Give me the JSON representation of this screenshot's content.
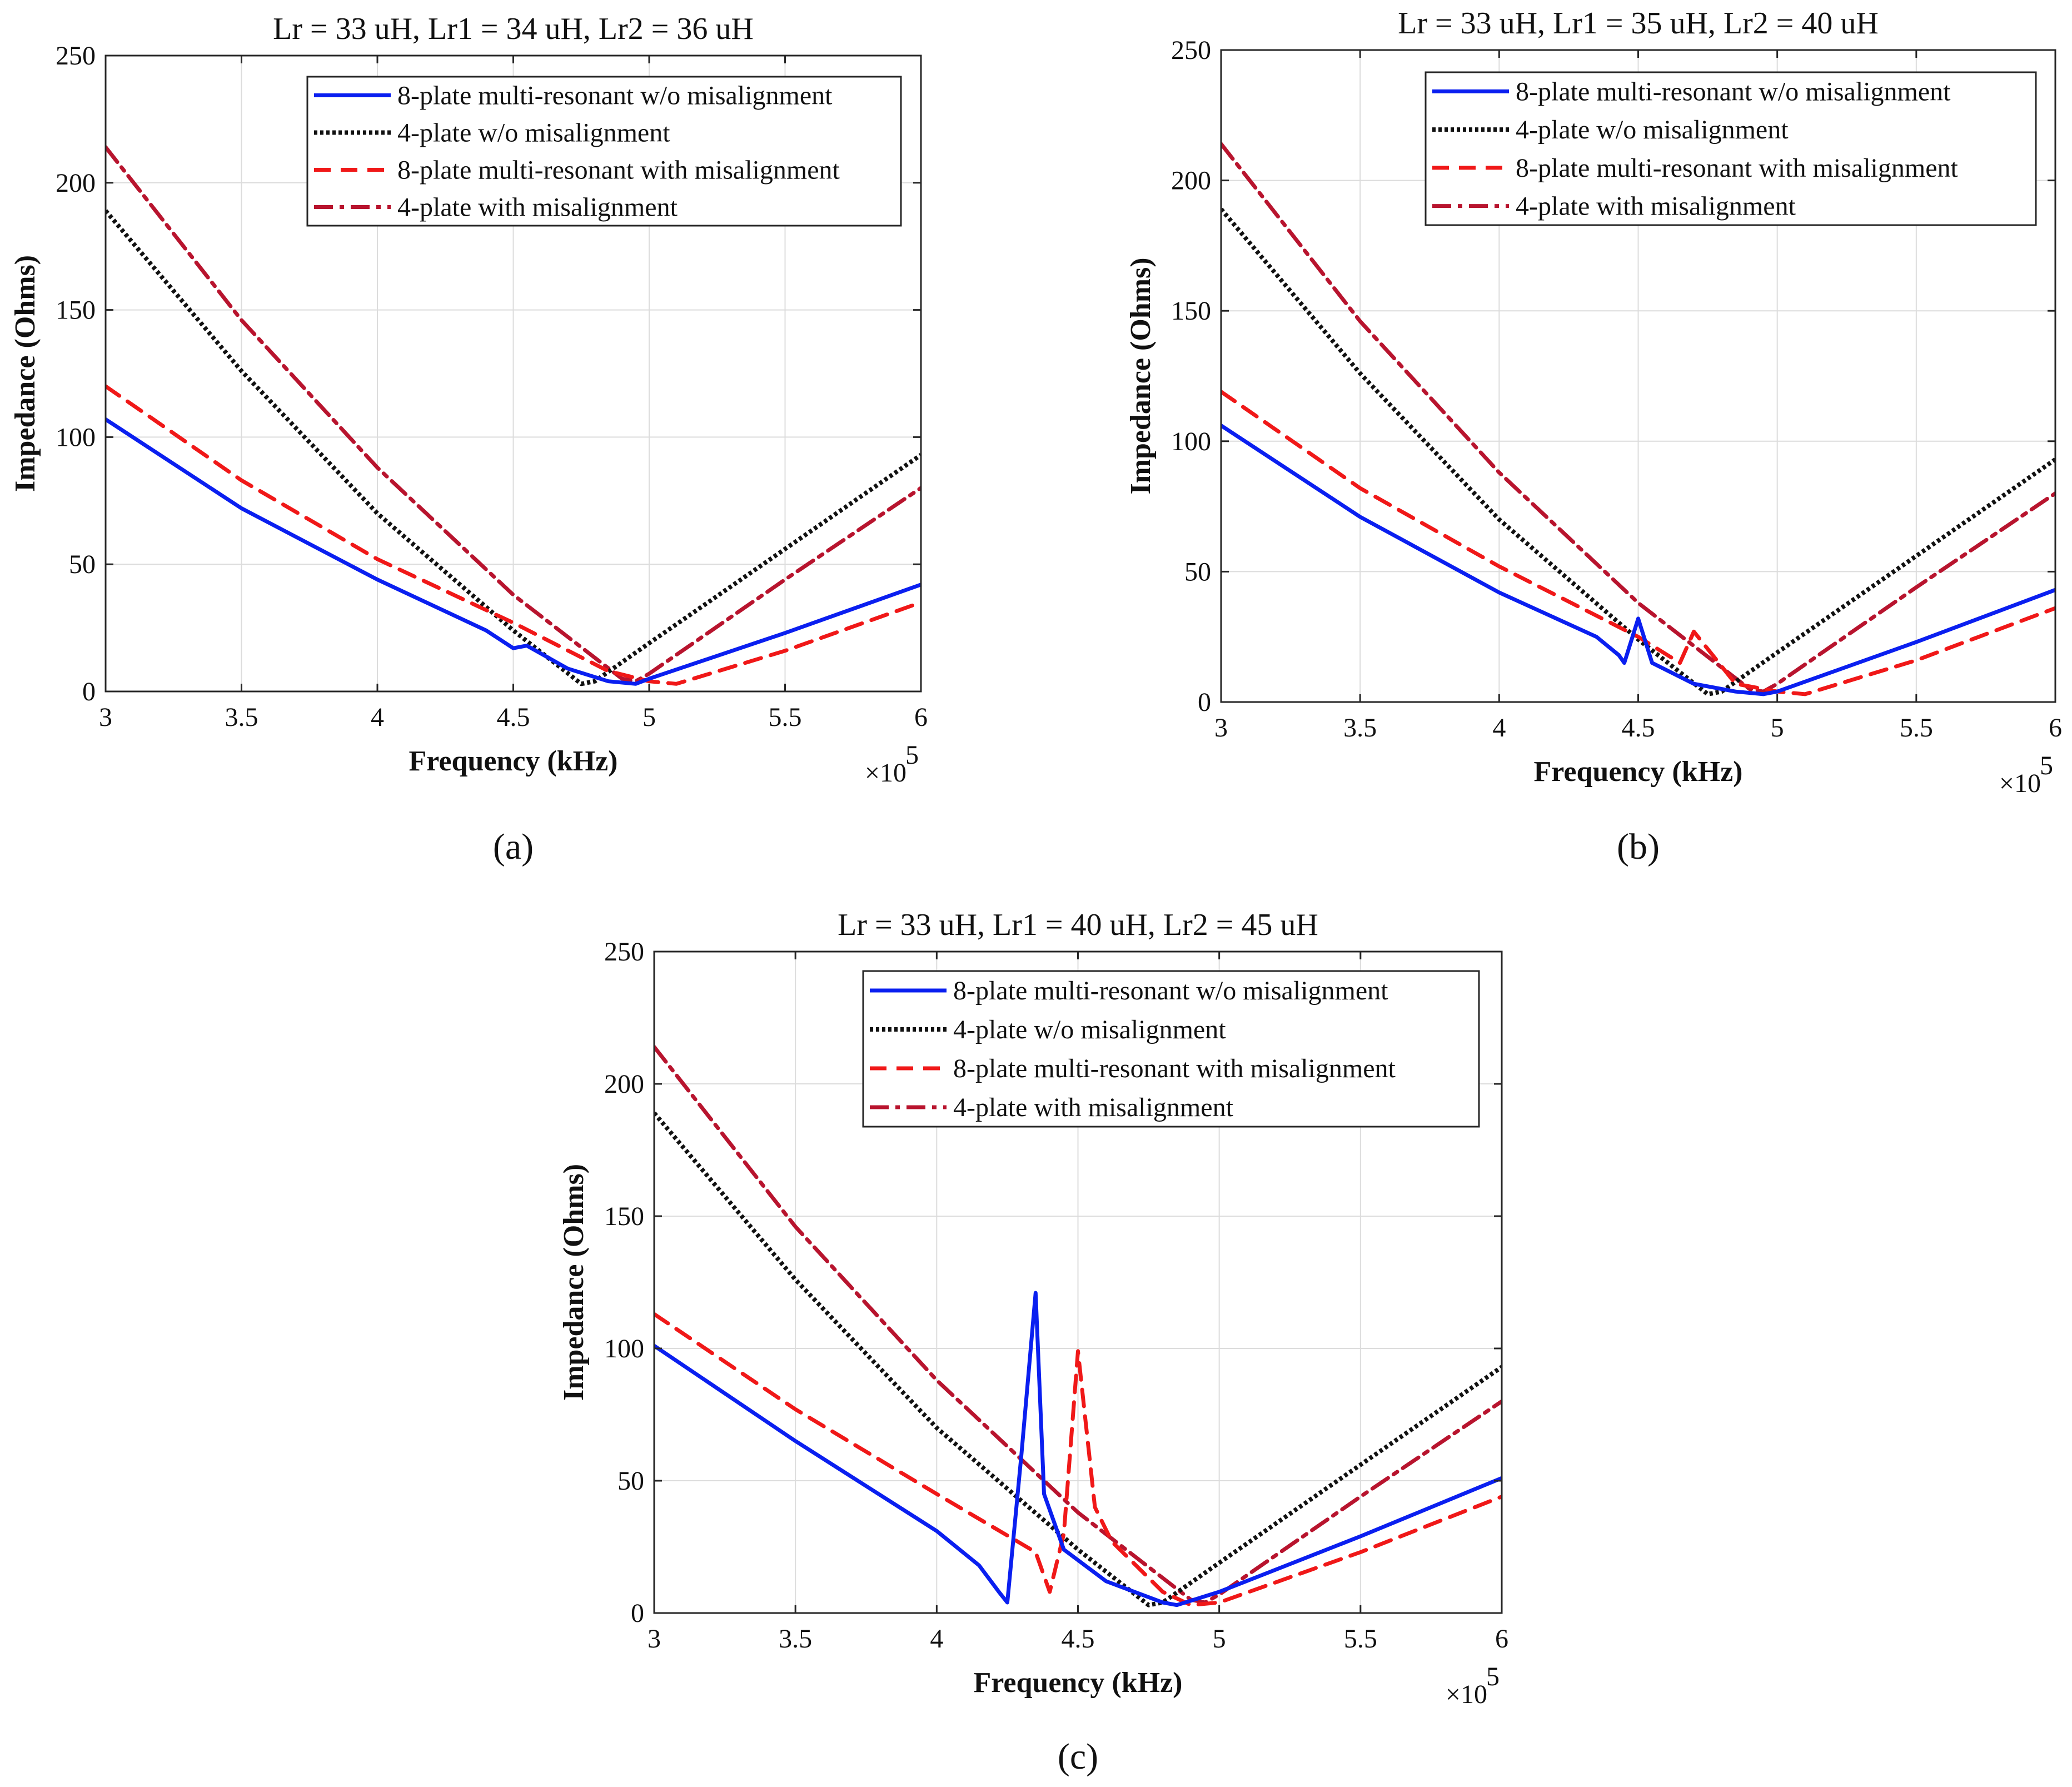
{
  "chart_data": [
    {
      "type": "line",
      "panel_label": "(a)",
      "title": "Lr = 33 uH, Lr1 = 34 uH, Lr2 = 36 uH",
      "xlabel": "Frequency (kHz)",
      "ylabel": "Impedance (Ohms)",
      "x_multiplier": "×10",
      "x_multiplier_exp": "5",
      "xlim": [
        3,
        6
      ],
      "ylim": [
        0,
        250
      ],
      "xticks": [
        "3",
        "3.5",
        "4",
        "4.5",
        "5",
        "5.5",
        "6"
      ],
      "yticks": [
        "0",
        "50",
        "100",
        "150",
        "200",
        "250"
      ],
      "grid": true,
      "legend_position": "top-right",
      "series": [
        {
          "name": "8-plate multi-resonant w/o misalignment",
          "color": "#0a1ff0",
          "style": "solid",
          "x": [
            3,
            3.5,
            4,
            4.4,
            4.5,
            4.55,
            4.7,
            4.85,
            4.95,
            5.0,
            5.5,
            6.0
          ],
          "y": [
            107,
            72,
            44,
            24,
            17,
            18,
            9,
            4,
            3,
            5,
            23,
            42
          ]
        },
        {
          "name": "4-plate w/o misalignment",
          "color": "#111111",
          "style": "dotted",
          "x": [
            3,
            3.5,
            4,
            4.5,
            4.75,
            4.8,
            5.0,
            5.5,
            6.0
          ],
          "y": [
            189,
            126,
            70,
            24,
            3,
            4,
            19,
            56,
            93
          ]
        },
        {
          "name": "8-plate multi-resonant with misalignment",
          "color": "#f01818",
          "style": "dashed",
          "x": [
            3,
            3.5,
            4,
            4.5,
            4.85,
            5.0,
            5.1,
            5.5,
            6.0
          ],
          "y": [
            120,
            83,
            52,
            27,
            8,
            4,
            3,
            16,
            35
          ]
        },
        {
          "name": "4-plate with misalignment",
          "color": "#b8142e",
          "style": "dashdot",
          "x": [
            3,
            3.5,
            4,
            4.5,
            4.9,
            4.95,
            5.0,
            5.5,
            6.0
          ],
          "y": [
            214,
            146,
            88,
            38,
            5,
            4,
            7,
            44,
            80
          ]
        }
      ]
    },
    {
      "type": "line",
      "panel_label": "(b)",
      "title": "Lr = 33 uH, Lr1 = 35 uH, Lr2 = 40 uH",
      "xlabel": "Frequency (kHz)",
      "ylabel": "Impedance (Ohms)",
      "x_multiplier": "×10",
      "x_multiplier_exp": "5",
      "xlim": [
        3,
        6
      ],
      "ylim": [
        0,
        250
      ],
      "xticks": [
        "3",
        "3.5",
        "4",
        "4.5",
        "5",
        "5.5",
        "6"
      ],
      "yticks": [
        "0",
        "50",
        "100",
        "150",
        "200",
        "250"
      ],
      "grid": true,
      "legend_position": "top-right",
      "series": [
        {
          "name": "8-plate multi-resonant w/o misalignment",
          "color": "#0a1ff0",
          "style": "solid",
          "x": [
            3,
            3.5,
            4,
            4.35,
            4.43,
            4.45,
            4.5,
            4.55,
            4.7,
            4.85,
            4.95,
            5.0,
            5.5,
            6.0
          ],
          "y": [
            106,
            71,
            42,
            25,
            18,
            15,
            32,
            15,
            7,
            4,
            3,
            4,
            23,
            43
          ]
        },
        {
          "name": "4-plate w/o misalignment",
          "color": "#111111",
          "style": "dotted",
          "x": [
            3,
            3.5,
            4,
            4.5,
            4.75,
            4.8,
            5.0,
            5.5,
            6.0
          ],
          "y": [
            189,
            126,
            70,
            24,
            3,
            4,
            19,
            56,
            93
          ]
        },
        {
          "name": "8-plate multi-resonant with misalignment",
          "color": "#f01818",
          "style": "dashed",
          "x": [
            3,
            3.5,
            4,
            4.5,
            4.65,
            4.7,
            4.85,
            5.0,
            5.1,
            5.5,
            6.0
          ],
          "y": [
            119,
            82,
            52,
            25,
            15,
            27,
            7,
            4,
            3,
            16,
            36
          ]
        },
        {
          "name": "4-plate with misalignment",
          "color": "#b8142e",
          "style": "dashdot",
          "x": [
            3,
            3.5,
            4,
            4.5,
            4.9,
            4.95,
            5.0,
            5.5,
            6.0
          ],
          "y": [
            214,
            146,
            88,
            38,
            5,
            4,
            7,
            44,
            80
          ]
        }
      ]
    },
    {
      "type": "line",
      "panel_label": "(c)",
      "title": "Lr = 33 uH, Lr1 = 40 uH, Lr2 = 45 uH",
      "xlabel": "Frequency (kHz)",
      "ylabel": "Impedance (Ohms)",
      "x_multiplier": "×10",
      "x_multiplier_exp": "5",
      "xlim": [
        3,
        6
      ],
      "ylim": [
        0,
        250
      ],
      "xticks": [
        "3",
        "3.5",
        "4",
        "4.5",
        "5",
        "5.5",
        "6"
      ],
      "yticks": [
        "0",
        "50",
        "100",
        "150",
        "200",
        "250"
      ],
      "grid": true,
      "legend_position": "top-right",
      "series": [
        {
          "name": "8-plate multi-resonant w/o misalignment",
          "color": "#0a1ff0",
          "style": "solid",
          "x": [
            3,
            3.5,
            4,
            4.15,
            4.22,
            4.25,
            4.3,
            4.35,
            4.38,
            4.45,
            4.6,
            4.8,
            4.85,
            5.0,
            5.5,
            6.0
          ],
          "y": [
            101,
            65,
            31,
            18,
            8,
            4,
            60,
            121,
            45,
            24,
            12,
            4,
            3,
            8,
            29,
            51
          ]
        },
        {
          "name": "4-plate w/o misalignment",
          "color": "#111111",
          "style": "dotted",
          "x": [
            3,
            3.5,
            4,
            4.5,
            4.75,
            4.8,
            5.0,
            5.5,
            6.0
          ],
          "y": [
            189,
            126,
            70,
            24,
            3,
            4,
            19,
            56,
            93
          ]
        },
        {
          "name": "8-plate multi-resonant with misalignment",
          "color": "#f01818",
          "style": "dashed",
          "x": [
            3,
            3.5,
            4,
            4.35,
            4.4,
            4.45,
            4.5,
            4.56,
            4.62,
            4.8,
            4.9,
            5.0,
            5.5,
            6.0
          ],
          "y": [
            113,
            77,
            45,
            23,
            8,
            30,
            99,
            40,
            27,
            8,
            3,
            4,
            23,
            44
          ]
        },
        {
          "name": "4-plate with misalignment",
          "color": "#b8142e",
          "style": "dashdot",
          "x": [
            3,
            3.5,
            4,
            4.5,
            4.9,
            4.95,
            5.0,
            5.5,
            6.0
          ],
          "y": [
            214,
            146,
            88,
            38,
            5,
            4,
            7,
            44,
            80
          ]
        }
      ]
    }
  ]
}
